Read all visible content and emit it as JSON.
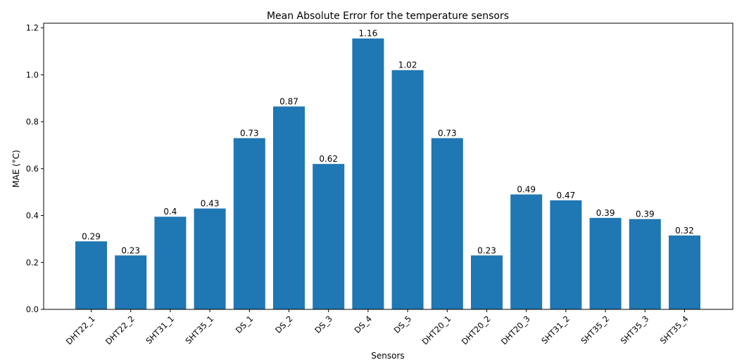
{
  "chart_data": {
    "type": "bar",
    "title": "Mean Absolute Error for the temperature sensors",
    "xlabel": "Sensors",
    "ylabel": "MAE (°C)",
    "categories": [
      "DHT22_1",
      "DHT22_2",
      "SHT31_1",
      "SHT35_1",
      "DS_1",
      "DS_2",
      "DS_3",
      "DS_4",
      "DS_5",
      "DHT20_1",
      "DHT20_2",
      "DHT20_3",
      "SHT31_2",
      "SHT35_2",
      "SHT35_3",
      "SHT35_4"
    ],
    "values": [
      0.29,
      0.23,
      0.395,
      0.43,
      0.73,
      0.865,
      0.62,
      1.155,
      1.02,
      0.73,
      0.23,
      0.49,
      0.465,
      0.39,
      0.385,
      0.315
    ],
    "data_labels": [
      "0.29",
      "0.23",
      "0.4",
      "0.43",
      "0.73",
      "0.87",
      "0.62",
      "1.16",
      "1.02",
      "0.73",
      "0.23",
      "0.49",
      "0.47",
      "0.39",
      "0.39",
      "0.32"
    ],
    "ylim": [
      0,
      1.22
    ],
    "yticks": [
      0.0,
      0.2,
      0.4,
      0.6,
      0.8,
      1.0,
      1.2
    ],
    "ytick_labels": [
      "0.0",
      "0.2",
      "0.4",
      "0.6",
      "0.8",
      "1.0",
      "1.2"
    ],
    "bar_color": "#1f77b4",
    "grid": false,
    "legend": "none"
  }
}
